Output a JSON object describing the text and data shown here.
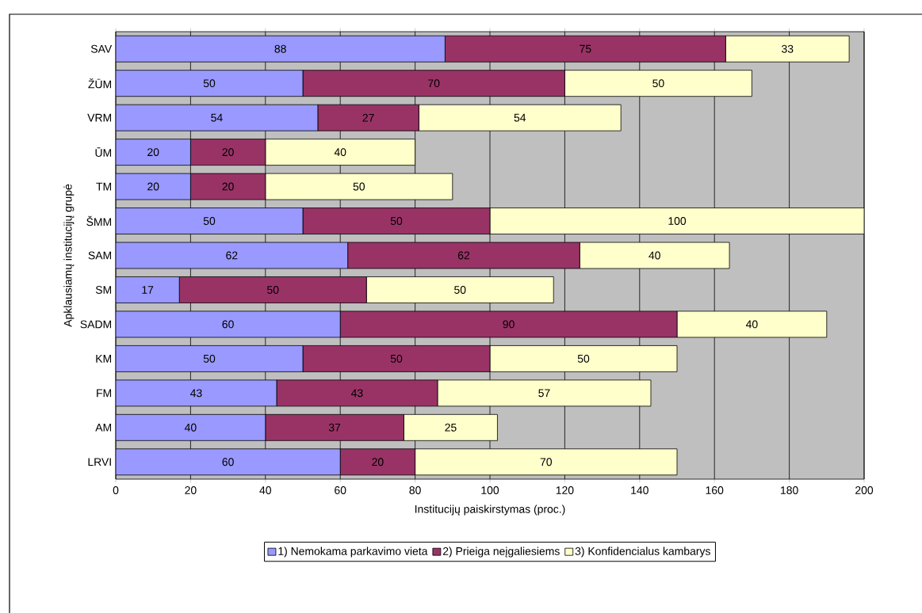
{
  "chart_data": {
    "type": "bar",
    "orientation": "horizontal",
    "stacked": true,
    "data_labels": true,
    "xlabel": "Institucijų paiskirstymas (proc.)",
    "ylabel": "Apklausiamų institucijų grupė",
    "categories": [
      "SAV",
      "ŽŪM",
      "VRM",
      "ŪM",
      "TM",
      "ŠMM",
      "SAM",
      "SM",
      "SADM",
      "KM",
      "FM",
      "AM",
      "LRVI"
    ],
    "series": [
      {
        "name": "1) Nemokama parkavimo vieta",
        "color": "#9999ff",
        "values": [
          88,
          50,
          54,
          20,
          20,
          50,
          62,
          17,
          60,
          50,
          43,
          40,
          60
        ]
      },
      {
        "name": "2) Prieiga neįgaliesiems",
        "color": "#993366",
        "values": [
          75,
          70,
          27,
          20,
          20,
          50,
          62,
          50,
          90,
          50,
          43,
          37,
          20
        ]
      },
      {
        "name": "3) Konfidencialus kambarys",
        "color": "#ffffcc",
        "values": [
          33,
          50,
          54,
          40,
          50,
          100,
          40,
          50,
          40,
          50,
          57,
          25,
          70
        ]
      }
    ],
    "xlim": [
      0,
      200
    ],
    "xticks": [
      0,
      20,
      40,
      60,
      80,
      100,
      120,
      140,
      160,
      180,
      200
    ],
    "grid": "x",
    "legend": "bottom"
  }
}
